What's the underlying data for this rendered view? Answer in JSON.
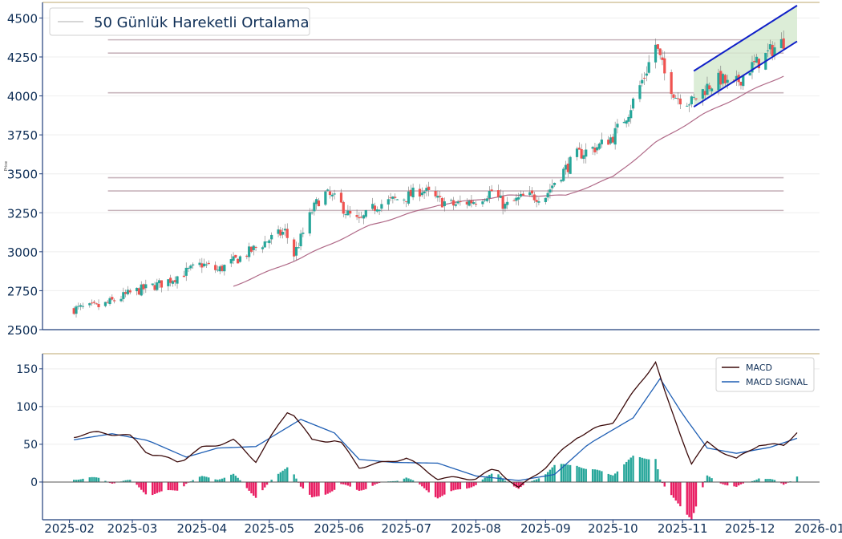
{
  "chart_data": [
    {
      "type": "candlestick",
      "name_hint": "price-panel",
      "ylabel": "Price",
      "ylim": [
        2500,
        4600
      ],
      "yticks": [
        2500,
        2750,
        3000,
        3250,
        3500,
        3750,
        4000,
        4250,
        4500
      ],
      "legend": {
        "placement": "top-left",
        "entries": [
          {
            "label": "50 Günlük Hareketli Ortalama",
            "color": "#c8c8c8"
          }
        ]
      },
      "up_color": "#26a69a",
      "down_color": "#ef5350",
      "ma_color": "#b06a88",
      "band_color": "#d6ead0",
      "trend_color": "#1020c8",
      "level_color": "#c8b4bc",
      "anchors": [
        [
          "2025-02-01",
          2630
        ],
        [
          "2025-02-15",
          2650
        ],
        [
          "2025-03-01",
          2740
        ],
        [
          "2025-03-15",
          2800
        ],
        [
          "2025-04-01",
          2920
        ],
        [
          "2025-04-08",
          2880
        ],
        [
          "2025-04-20",
          2980
        ],
        [
          "2025-05-01",
          3080
        ],
        [
          "2025-05-08",
          3130
        ],
        [
          "2025-05-12",
          2980
        ],
        [
          "2025-05-20",
          3260
        ],
        [
          "2025-05-25",
          3380
        ],
        [
          "2025-06-01",
          3320
        ],
        [
          "2025-06-05",
          3240
        ],
        [
          "2025-06-10",
          3190
        ],
        [
          "2025-06-18",
          3300
        ],
        [
          "2025-06-25",
          3330
        ],
        [
          "2025-07-01",
          3350
        ],
        [
          "2025-07-08",
          3400
        ],
        [
          "2025-07-15",
          3330
        ],
        [
          "2025-07-22",
          3300
        ],
        [
          "2025-08-01",
          3330
        ],
        [
          "2025-08-08",
          3390
        ],
        [
          "2025-08-14",
          3290
        ],
        [
          "2025-08-22",
          3350
        ],
        [
          "2025-09-01",
          3360
        ],
        [
          "2025-09-05",
          3450
        ],
        [
          "2025-09-15",
          3620
        ],
        [
          "2025-09-25",
          3680
        ],
        [
          "2025-10-01",
          3740
        ],
        [
          "2025-10-08",
          3900
        ],
        [
          "2025-10-15",
          4130
        ],
        [
          "2025-10-20",
          4330
        ],
        [
          "2025-10-24",
          4140
        ],
        [
          "2025-10-29",
          4000
        ],
        [
          "2025-11-05",
          3960
        ],
        [
          "2025-11-12",
          4060
        ],
        [
          "2025-11-18",
          4110
        ],
        [
          "2025-11-23",
          4050
        ],
        [
          "2025-12-01",
          4180
        ],
        [
          "2025-12-06",
          4230
        ],
        [
          "2025-12-11",
          4300
        ],
        [
          "2025-12-16",
          4350
        ]
      ],
      "ma_anchors": [
        [
          "2025-04-15",
          2780
        ],
        [
          "2025-05-15",
          2960
        ],
        [
          "2025-06-15",
          3170
        ],
        [
          "2025-07-15",
          3300
        ],
        [
          "2025-08-15",
          3360
        ],
        [
          "2025-09-10",
          3360
        ],
        [
          "2025-10-01",
          3480
        ],
        [
          "2025-10-20",
          3700
        ],
        [
          "2025-11-10",
          3880
        ],
        [
          "2025-12-01",
          4030
        ],
        [
          "2025-12-16",
          4130
        ]
      ],
      "levels": [
        {
          "y": 4360,
          "x0": "2025-02-01",
          "x1": "2025-12-16"
        },
        {
          "y": 4275,
          "x0": "2025-02-01",
          "x1": "2025-12-16"
        },
        {
          "y": 4020,
          "x0": "2025-02-01",
          "x1": "2025-12-16"
        },
        {
          "y": 3475,
          "x0": "2025-02-01",
          "x1": "2025-12-16"
        },
        {
          "y": 3390,
          "x0": "2025-02-01",
          "x1": "2025-12-16"
        },
        {
          "y": 3265,
          "x0": "2025-02-01",
          "x1": "2025-12-16"
        }
      ],
      "channel": {
        "upper": [
          [
            "2025-11-06",
            4160
          ],
          [
            "2025-12-22",
            4580
          ]
        ],
        "lower": [
          [
            "2025-11-06",
            3930
          ],
          [
            "2025-12-22",
            4350
          ]
        ]
      }
    },
    {
      "type": "line",
      "name_hint": "macd-panel",
      "ylim": [
        -50,
        170
      ],
      "yticks": [
        0,
        50,
        100,
        150
      ],
      "legend": {
        "placement": "top-right",
        "entries": [
          {
            "label": "MACD",
            "color": "#3b0a0a"
          },
          {
            "label": "MACD SIGNAL",
            "color": "#1f5fb4"
          }
        ]
      },
      "macd_anchors": [
        [
          "2025-02-01",
          60
        ],
        [
          "2025-02-15",
          66
        ],
        [
          "2025-03-01",
          60
        ],
        [
          "2025-03-08",
          38
        ],
        [
          "2025-03-22",
          27
        ],
        [
          "2025-04-01",
          45
        ],
        [
          "2025-04-15",
          55
        ],
        [
          "2025-04-25",
          28
        ],
        [
          "2025-05-10",
          98
        ],
        [
          "2025-05-20",
          55
        ],
        [
          "2025-06-01",
          55
        ],
        [
          "2025-06-10",
          20
        ],
        [
          "2025-06-20",
          25
        ],
        [
          "2025-07-01",
          32
        ],
        [
          "2025-07-15",
          5
        ],
        [
          "2025-08-01",
          5
        ],
        [
          "2025-08-10",
          18
        ],
        [
          "2025-08-20",
          -8
        ],
        [
          "2025-09-01",
          20
        ],
        [
          "2025-09-15",
          60
        ],
        [
          "2025-10-01",
          80
        ],
        [
          "2025-10-20",
          160
        ],
        [
          "2025-10-25",
          110
        ],
        [
          "2025-11-05",
          25
        ],
        [
          "2025-11-12",
          52
        ],
        [
          "2025-11-25",
          30
        ],
        [
          "2025-12-05",
          50
        ],
        [
          "2025-12-16",
          48
        ],
        [
          "2025-12-22",
          67
        ]
      ],
      "signal_anchors": [
        [
          "2025-02-01",
          55
        ],
        [
          "2025-02-20",
          64
        ],
        [
          "2025-03-08",
          55
        ],
        [
          "2025-03-25",
          33
        ],
        [
          "2025-04-08",
          45
        ],
        [
          "2025-04-25",
          47
        ],
        [
          "2025-05-15",
          83
        ],
        [
          "2025-05-30",
          65
        ],
        [
          "2025-06-10",
          30
        ],
        [
          "2025-06-25",
          26
        ],
        [
          "2025-07-15",
          25
        ],
        [
          "2025-08-01",
          8
        ],
        [
          "2025-08-20",
          2
        ],
        [
          "2025-09-05",
          10
        ],
        [
          "2025-09-20",
          50
        ],
        [
          "2025-10-10",
          85
        ],
        [
          "2025-10-22",
          137
        ],
        [
          "2025-11-01",
          90
        ],
        [
          "2025-11-12",
          45
        ],
        [
          "2025-11-25",
          38
        ],
        [
          "2025-12-10",
          46
        ],
        [
          "2025-12-22",
          58
        ]
      ],
      "hist_up_color": "#26a69a",
      "hist_down_color": "#e91e63"
    }
  ],
  "x_axis": {
    "ticks": [
      "2025-02",
      "2025-03",
      "2025-04",
      "2025-05",
      "2025-06",
      "2025-07",
      "2025-08",
      "2025-09",
      "2025-10",
      "2025-11",
      "2025-12",
      "2026-01"
    ],
    "range": [
      "2025-01-20",
      "2026-01-01"
    ]
  }
}
